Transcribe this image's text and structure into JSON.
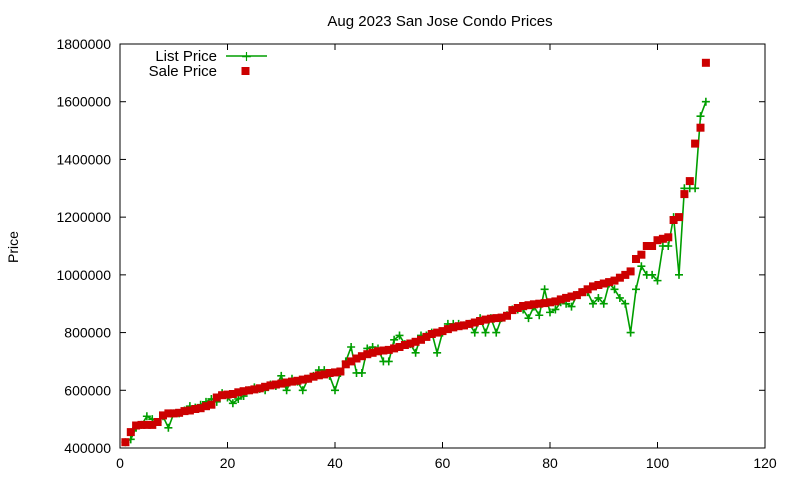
{
  "chart_data": {
    "type": "line",
    "title": "Aug 2023 San Jose Condo Prices",
    "xlabel": "",
    "ylabel": "Price",
    "xlim": [
      0,
      120
    ],
    "ylim": [
      400000,
      1800000
    ],
    "x_ticks": [
      0,
      20,
      40,
      60,
      80,
      100,
      120
    ],
    "y_ticks": [
      400000,
      600000,
      800000,
      1000000,
      1200000,
      1400000,
      1600000,
      1800000
    ],
    "grid": false,
    "legend_position": "top-left",
    "colors": {
      "list_price": "#009e00",
      "sale_price": "#cc0000"
    },
    "series": [
      {
        "name": "List Price",
        "style": "line-with-plus-markers",
        "x": [
          1,
          2,
          3,
          4,
          5,
          6,
          7,
          8,
          9,
          10,
          11,
          12,
          13,
          14,
          15,
          16,
          17,
          18,
          19,
          20,
          21,
          22,
          23,
          24,
          25,
          26,
          27,
          28,
          29,
          30,
          31,
          32,
          33,
          34,
          35,
          36,
          37,
          38,
          39,
          40,
          41,
          42,
          43,
          44,
          45,
          46,
          47,
          48,
          49,
          50,
          51,
          52,
          53,
          54,
          55,
          56,
          57,
          58,
          59,
          60,
          61,
          62,
          63,
          64,
          65,
          66,
          67,
          68,
          69,
          70,
          71,
          72,
          73,
          74,
          75,
          76,
          77,
          78,
          79,
          80,
          81,
          82,
          83,
          84,
          85,
          86,
          87,
          88,
          89,
          90,
          91,
          92,
          93,
          94,
          95,
          96,
          97,
          98,
          99,
          100,
          101,
          102,
          103,
          104,
          105,
          106,
          107,
          108,
          109
        ],
        "values": [
          420000,
          430000,
          470000,
          480000,
          510000,
          500000,
          490000,
          510000,
          470000,
          520000,
          520000,
          530000,
          545000,
          540000,
          550000,
          560000,
          570000,
          560000,
          590000,
          575000,
          555000,
          570000,
          580000,
          600000,
          610000,
          605000,
          600000,
          620000,
          615000,
          650000,
          600000,
          640000,
          630000,
          600000,
          640000,
          650000,
          670000,
          670000,
          650000,
          600000,
          660000,
          700000,
          750000,
          660000,
          660000,
          745000,
          750000,
          745000,
          700000,
          700000,
          775000,
          790000,
          760000,
          760000,
          730000,
          790000,
          790000,
          800000,
          730000,
          800000,
          830000,
          830000,
          830000,
          825000,
          830000,
          800000,
          850000,
          800000,
          850000,
          800000,
          850000,
          860000,
          880000,
          880000,
          880000,
          850000,
          890000,
          860000,
          950000,
          870000,
          880000,
          905000,
          900000,
          890000,
          930000,
          940000,
          940000,
          900000,
          920000,
          900000,
          970000,
          950000,
          920000,
          900000,
          800000,
          950000,
          1030000,
          1000000,
          1000000,
          980000,
          1100000,
          1100000,
          1200000,
          1000000,
          1300000,
          1300000,
          1300000,
          1550000,
          1600000
        ]
      },
      {
        "name": "Sale Price",
        "style": "square-markers",
        "x": [
          1,
          2,
          3,
          4,
          5,
          6,
          7,
          8,
          9,
          10,
          11,
          12,
          13,
          14,
          15,
          16,
          17,
          18,
          19,
          20,
          21,
          22,
          23,
          24,
          25,
          26,
          27,
          28,
          29,
          30,
          31,
          32,
          33,
          34,
          35,
          36,
          37,
          38,
          39,
          40,
          41,
          42,
          43,
          44,
          45,
          46,
          47,
          48,
          49,
          50,
          51,
          52,
          53,
          54,
          55,
          56,
          57,
          58,
          59,
          60,
          61,
          62,
          63,
          64,
          65,
          66,
          67,
          68,
          69,
          70,
          71,
          72,
          73,
          74,
          75,
          76,
          77,
          78,
          79,
          80,
          81,
          82,
          83,
          84,
          85,
          86,
          87,
          88,
          89,
          90,
          91,
          92,
          93,
          94,
          95,
          96,
          97,
          98,
          99,
          100,
          101,
          102,
          103,
          104,
          105,
          106,
          107,
          108,
          109
        ],
        "values": [
          420000,
          455000,
          478000,
          480000,
          480000,
          480000,
          490000,
          513000,
          520000,
          520000,
          522000,
          528000,
          530000,
          535000,
          538000,
          545000,
          550000,
          575000,
          583000,
          585000,
          587000,
          593000,
          597000,
          600000,
          603000,
          607000,
          612000,
          617000,
          620000,
          623000,
          627000,
          630000,
          633000,
          637000,
          640000,
          647000,
          652000,
          655000,
          660000,
          662000,
          665000,
          690000,
          700000,
          710000,
          718000,
          725000,
          730000,
          735000,
          738000,
          740000,
          745000,
          750000,
          757000,
          762000,
          768000,
          775000,
          785000,
          795000,
          800000,
          805000,
          812000,
          818000,
          822000,
          825000,
          830000,
          835000,
          840000,
          845000,
          848000,
          850000,
          852000,
          858000,
          878000,
          885000,
          892000,
          895000,
          898000,
          900000,
          902000,
          905000,
          908000,
          915000,
          920000,
          925000,
          930000,
          940000,
          950000,
          960000,
          965000,
          970000,
          975000,
          980000,
          990000,
          1000000,
          1012000,
          1055000,
          1070000,
          1100000,
          1100000,
          1120000,
          1125000,
          1130000,
          1190000,
          1200000,
          1280000,
          1325000,
          1455000,
          1510000,
          1735000
        ]
      }
    ]
  }
}
